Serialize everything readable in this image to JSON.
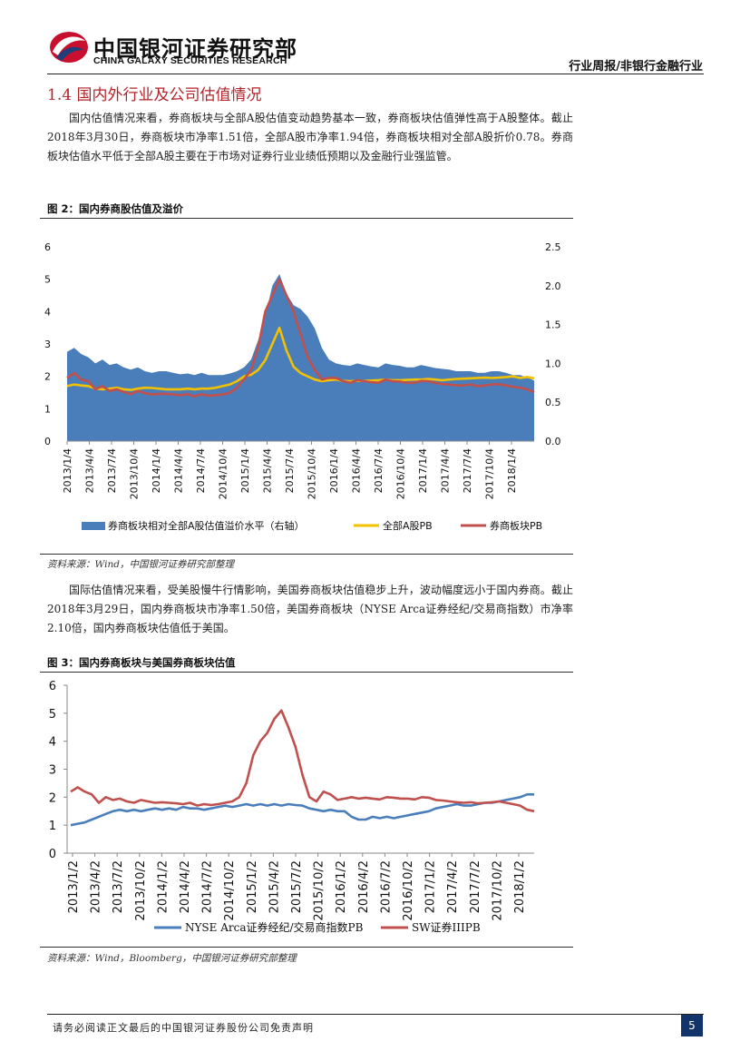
{
  "header": {
    "logo_cn": "中国银河证券研究部",
    "logo_en": "CHINA GALAXY SECURITIES RESEARCH",
    "report_type": "行业周报/非银行金融行业"
  },
  "section": {
    "title": "1.4 国内外行业及公司估值情况"
  },
  "paragraphs": {
    "p1": "国内估值情况来看，券商板块与全部A股估值变动趋势基本一致，券商板块估值弹性高于A股整体。截止2018年3月30日，券商板块市净率1.51倍，全部A股市净率1.94倍，券商板块相对全部A股折价0.78。券商板块估值水平低于全部A股主要在于市场对证券行业业绩低预期以及金融行业强监管。",
    "p2": "国际估值情况来看，受美股慢牛行情影响，美国券商板块估值稳步上升，波动幅度远小于国内券商。截止2018年3月29日，国内券商板块市净率1.50倍，美国券商板块（NYSE Arca证券经纪/交易商指数）市净率2.10倍，国内券商板块估值低于美国。"
  },
  "figures": {
    "fig2_title": "图 2：国内券商股估值及溢价",
    "fig2_source": "资料来源：Wind，中国银河证券研究部整理",
    "fig3_title": "图 3：国内券商板块与美国券商板块估值",
    "fig3_source": "资料来源：Wind，Bloomberg，中国银河证券研究部整理"
  },
  "chart_data": [
    {
      "type": "area",
      "title": "国内券商股估值及溢价",
      "x_tick_labels": [
        "2013/1/4",
        "2013/4/4",
        "2013/7/4",
        "2013/10/4",
        "2014/1/4",
        "2014/4/4",
        "2014/7/4",
        "2014/10/4",
        "2015/1/4",
        "2015/4/4",
        "2015/7/4",
        "2015/10/4",
        "2016/1/4",
        "2016/4/4",
        "2016/7/4",
        "2016/10/4",
        "2017/1/4",
        "2017/4/4",
        "2017/7/4",
        "2017/10/4",
        "2018/1/4"
      ],
      "left_axis": {
        "ticks": [
          "0",
          "1",
          "2",
          "3",
          "4",
          "5",
          "6"
        ],
        "range": [
          0,
          6
        ]
      },
      "right_axis": {
        "ticks": [
          "0.0",
          "0.5",
          "1.0",
          "1.5",
          "2.0",
          "2.5"
        ],
        "range": [
          0,
          2.5
        ]
      },
      "legend": [
        "券商板块相对全部A股估值溢价水平（右轴）",
        "全部A股PB",
        "券商板块PB"
      ],
      "colors": {
        "premium": "#4a7ebb",
        "a_share": "#f2c100",
        "broker": "#c0504d"
      },
      "series": [
        {
          "name": "券商板块相对全部A股估值溢价水平（右轴）",
          "axis": "right",
          "values": [
            1.15,
            1.2,
            1.12,
            1.08,
            1.0,
            1.05,
            0.98,
            1.0,
            0.95,
            0.92,
            0.95,
            0.9,
            0.88,
            0.9,
            0.9,
            0.88,
            0.86,
            0.87,
            0.85,
            0.88,
            0.85,
            0.85,
            0.85,
            0.87,
            0.9,
            0.95,
            1.05,
            1.3,
            1.6,
            2.0,
            2.15,
            1.9,
            1.75,
            1.7,
            1.6,
            1.45,
            1.2,
            1.05,
            1.0,
            0.98,
            0.97,
            1.0,
            0.98,
            0.96,
            0.95,
            1.0,
            0.98,
            0.97,
            0.95,
            0.95,
            0.98,
            0.96,
            0.94,
            0.93,
            0.92,
            0.9,
            0.9,
            0.9,
            0.88,
            0.88,
            0.9,
            0.9,
            0.88,
            0.85,
            0.85,
            0.82,
            0.78
          ]
        },
        {
          "name": "全部A股PB",
          "axis": "left",
          "values": [
            1.7,
            1.75,
            1.72,
            1.7,
            1.62,
            1.6,
            1.62,
            1.65,
            1.6,
            1.58,
            1.62,
            1.65,
            1.64,
            1.62,
            1.6,
            1.6,
            1.6,
            1.62,
            1.6,
            1.62,
            1.62,
            1.65,
            1.7,
            1.75,
            1.85,
            2.0,
            2.05,
            2.2,
            2.5,
            3.0,
            3.5,
            2.8,
            2.3,
            2.1,
            2.0,
            1.9,
            1.85,
            1.88,
            1.9,
            1.86,
            1.85,
            1.86,
            1.86,
            1.87,
            1.88,
            1.9,
            1.88,
            1.88,
            1.89,
            1.9,
            1.9,
            1.92,
            1.9,
            1.88,
            1.9,
            1.92,
            1.93,
            1.94,
            1.95,
            1.96,
            1.95,
            1.96,
            1.98,
            2.0,
            1.95,
            1.98,
            1.94
          ]
        },
        {
          "name": "券商板块PB",
          "axis": "left",
          "values": [
            1.95,
            2.1,
            1.9,
            1.85,
            1.6,
            1.7,
            1.55,
            1.6,
            1.52,
            1.45,
            1.55,
            1.48,
            1.44,
            1.46,
            1.46,
            1.44,
            1.42,
            1.45,
            1.38,
            1.45,
            1.4,
            1.42,
            1.44,
            1.5,
            1.65,
            1.9,
            2.2,
            2.9,
            4.0,
            4.5,
            5.0,
            4.5,
            4.0,
            3.3,
            2.6,
            2.2,
            1.9,
            1.95,
            1.95,
            1.85,
            1.8,
            1.88,
            1.85,
            1.82,
            1.8,
            1.9,
            1.85,
            1.84,
            1.8,
            1.8,
            1.86,
            1.85,
            1.8,
            1.76,
            1.75,
            1.72,
            1.72,
            1.75,
            1.7,
            1.72,
            1.75,
            1.76,
            1.72,
            1.68,
            1.65,
            1.6,
            1.51
          ]
        }
      ]
    },
    {
      "type": "line",
      "title": "国内券商板块与美国券商板块估值",
      "x_tick_labels": [
        "2013/1/2",
        "2013/4/2",
        "2013/7/2",
        "2013/10/2",
        "2014/1/2",
        "2014/4/2",
        "2014/7/2",
        "2014/10/2",
        "2015/1/2",
        "2015/4/2",
        "2015/7/2",
        "2015/10/2",
        "2016/1/2",
        "2016/4/2",
        "2016/7/2",
        "2016/10/2",
        "2017/1/2",
        "2017/4/2",
        "2017/7/2",
        "2017/10/2",
        "2018/1/2"
      ],
      "y_axis": {
        "ticks": [
          "0",
          "1",
          "2",
          "3",
          "4",
          "5",
          "6"
        ],
        "range": [
          0,
          6
        ]
      },
      "legend": [
        "NYSE Arca证券经纪/交易商指数PB",
        "SW证券IIIPB"
      ],
      "colors": {
        "nyse": "#4a7ebb",
        "sw": "#c0504d"
      },
      "series": [
        {
          "name": "NYSE Arca证券经纪/交易商指数PB",
          "values": [
            1.0,
            1.05,
            1.1,
            1.2,
            1.3,
            1.4,
            1.5,
            1.55,
            1.5,
            1.55,
            1.5,
            1.55,
            1.6,
            1.55,
            1.6,
            1.55,
            1.65,
            1.6,
            1.6,
            1.55,
            1.6,
            1.65,
            1.7,
            1.65,
            1.7,
            1.75,
            1.7,
            1.75,
            1.7,
            1.75,
            1.7,
            1.75,
            1.72,
            1.7,
            1.6,
            1.55,
            1.5,
            1.55,
            1.5,
            1.5,
            1.3,
            1.2,
            1.2,
            1.3,
            1.25,
            1.3,
            1.25,
            1.3,
            1.35,
            1.4,
            1.45,
            1.5,
            1.6,
            1.65,
            1.7,
            1.75,
            1.7,
            1.7,
            1.75,
            1.8,
            1.8,
            1.85,
            1.9,
            1.95,
            2.0,
            2.1,
            2.1
          ]
        },
        {
          "name": "SW证券IIIPB",
          "values": [
            2.2,
            2.35,
            2.2,
            2.1,
            1.8,
            2.0,
            1.9,
            1.95,
            1.85,
            1.8,
            1.9,
            1.85,
            1.8,
            1.82,
            1.8,
            1.78,
            1.75,
            1.8,
            1.7,
            1.75,
            1.72,
            1.75,
            1.8,
            1.85,
            2.0,
            2.5,
            3.5,
            4.0,
            4.3,
            4.8,
            5.1,
            4.5,
            3.8,
            2.8,
            2.0,
            1.85,
            2.2,
            2.1,
            1.9,
            1.95,
            2.0,
            1.95,
            1.98,
            1.95,
            1.92,
            2.0,
            1.98,
            1.95,
            1.95,
            1.92,
            2.0,
            1.98,
            1.9,
            1.88,
            1.85,
            1.82,
            1.8,
            1.82,
            1.78,
            1.8,
            1.82,
            1.85,
            1.8,
            1.75,
            1.7,
            1.55,
            1.5
          ]
        }
      ]
    }
  ],
  "footer": {
    "disclaimer": "请务必阅读正文最后的中国银河证券股份公司免责声明",
    "page": "5"
  }
}
